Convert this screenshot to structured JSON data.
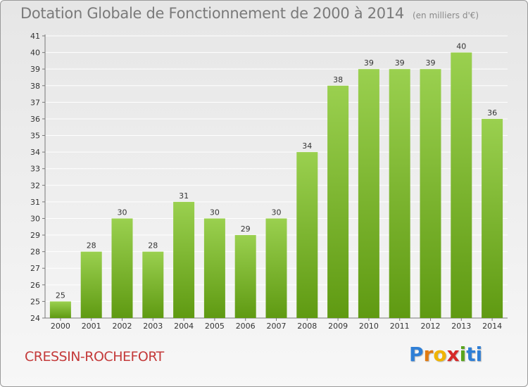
{
  "chart_data": {
    "type": "bar",
    "title": "Dotation Globale de Fonctionnement de 2000 à 2014",
    "subtitle": "(en milliers d'€)",
    "xlabel": "",
    "ylabel": "",
    "categories": [
      "2000",
      "2001",
      "2002",
      "2003",
      "2004",
      "2005",
      "2006",
      "2007",
      "2008",
      "2009",
      "2010",
      "2011",
      "2012",
      "2013",
      "2014"
    ],
    "values": [
      25,
      28,
      30,
      28,
      31,
      30,
      29,
      30,
      34,
      38,
      39,
      39,
      39,
      40,
      36
    ],
    "data_labels": [
      "25",
      "28",
      "30",
      "28",
      "31",
      "30",
      "29",
      "30",
      "34",
      "38",
      "39",
      "39",
      "39",
      "40",
      "36"
    ],
    "ylim": [
      24,
      41
    ],
    "yticks": [
      24,
      25,
      26,
      27,
      28,
      29,
      30,
      31,
      32,
      33,
      34,
      35,
      36,
      37,
      38,
      39,
      40,
      41
    ],
    "grid": true,
    "legend": "none",
    "colors": {
      "bar_top": "#9ad04f",
      "bar_bottom": "#5f9a12",
      "grid": "#ffffff",
      "axis": "#777777",
      "text": "#333333"
    }
  },
  "footer": {
    "commune": "CRESSIN-ROCHEFORT",
    "brand": "Proxiti"
  }
}
